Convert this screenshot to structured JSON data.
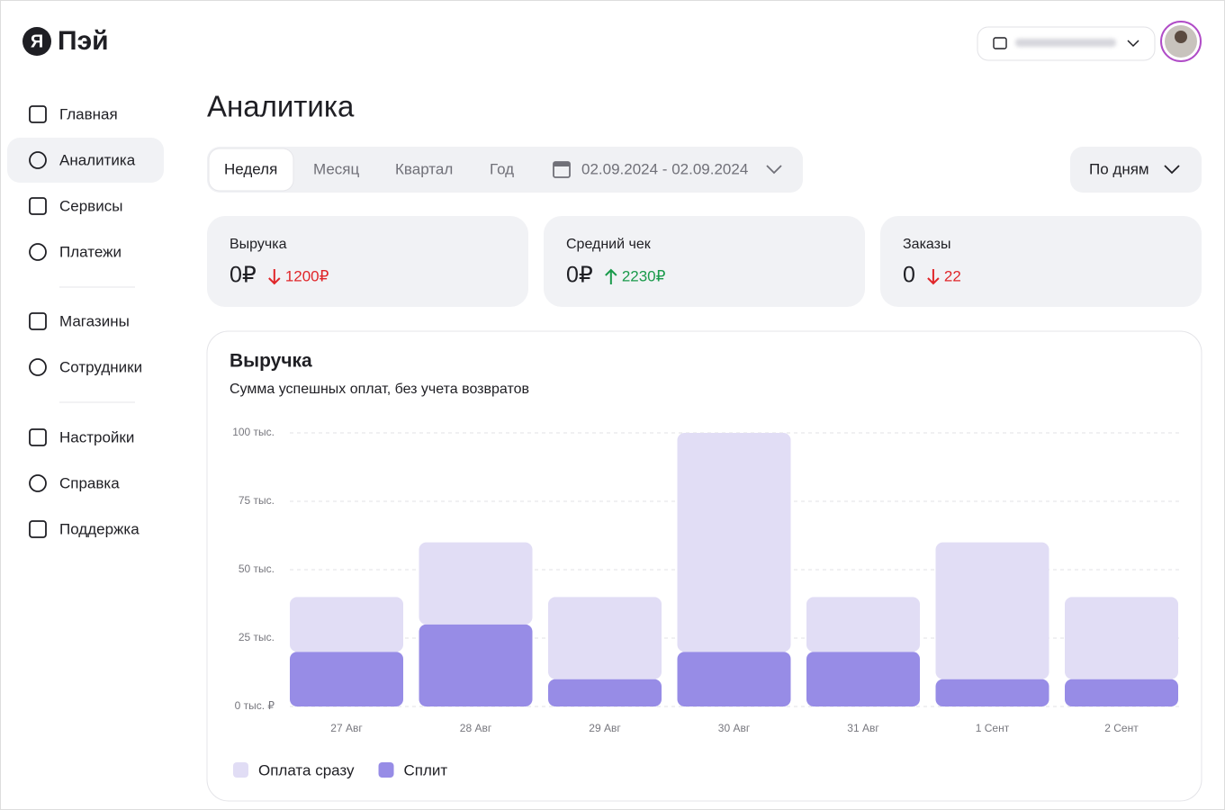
{
  "logo": {
    "mark": "Я",
    "name": "Пэй"
  },
  "nav": [
    "Главная",
    "Аналитика",
    "Сервисы",
    "Платежи",
    "Магазины",
    "Сотрудники",
    "Настройки",
    "Справка",
    "Поддержка"
  ],
  "page_title": "Аналитика",
  "period_tabs": [
    "Неделя",
    "Месяц",
    "Квартал",
    "Год"
  ],
  "date_range": "02.09.2024 - 02.09.2024",
  "grouping": "По дням",
  "kpis": [
    {
      "label": "Выручка",
      "value": "0₽",
      "change": "1200₽"
    },
    {
      "label": "Средний чек",
      "value": "0₽",
      "change": "2230₽"
    },
    {
      "label": "Заказы",
      "value": "0",
      "change": "22"
    }
  ],
  "chart_data": {
    "type": "stacked_bar",
    "title": "Выручка",
    "subtitle": "Сумма успешных оплат, без учета возвратов",
    "categories": [
      "27 Авг",
      "28 Авг",
      "29 Авг",
      "30 Авг",
      "31 Авг",
      "1 Сент",
      "2 Сент"
    ],
    "series": [
      {
        "name": "Оплата сразу",
        "color": "#e1ddf5",
        "values": [
          20000,
          30000,
          30000,
          80000,
          20000,
          50000,
          30000
        ]
      },
      {
        "name": "Сплит",
        "color": "#978ce6",
        "values": [
          20000,
          30000,
          10000,
          20000,
          20000,
          10000,
          10000
        ]
      }
    ],
    "ylim": [
      0,
      100000
    ],
    "yticks": [
      {
        "value": 0,
        "label": "0 тыс. ₽"
      },
      {
        "value": 25000,
        "label": "25 тыс."
      },
      {
        "value": 50000,
        "label": "50 тыс."
      },
      {
        "value": 75000,
        "label": "75 тыс."
      },
      {
        "value": 100000,
        "label": "100 тыс."
      }
    ],
    "grid": true
  }
}
